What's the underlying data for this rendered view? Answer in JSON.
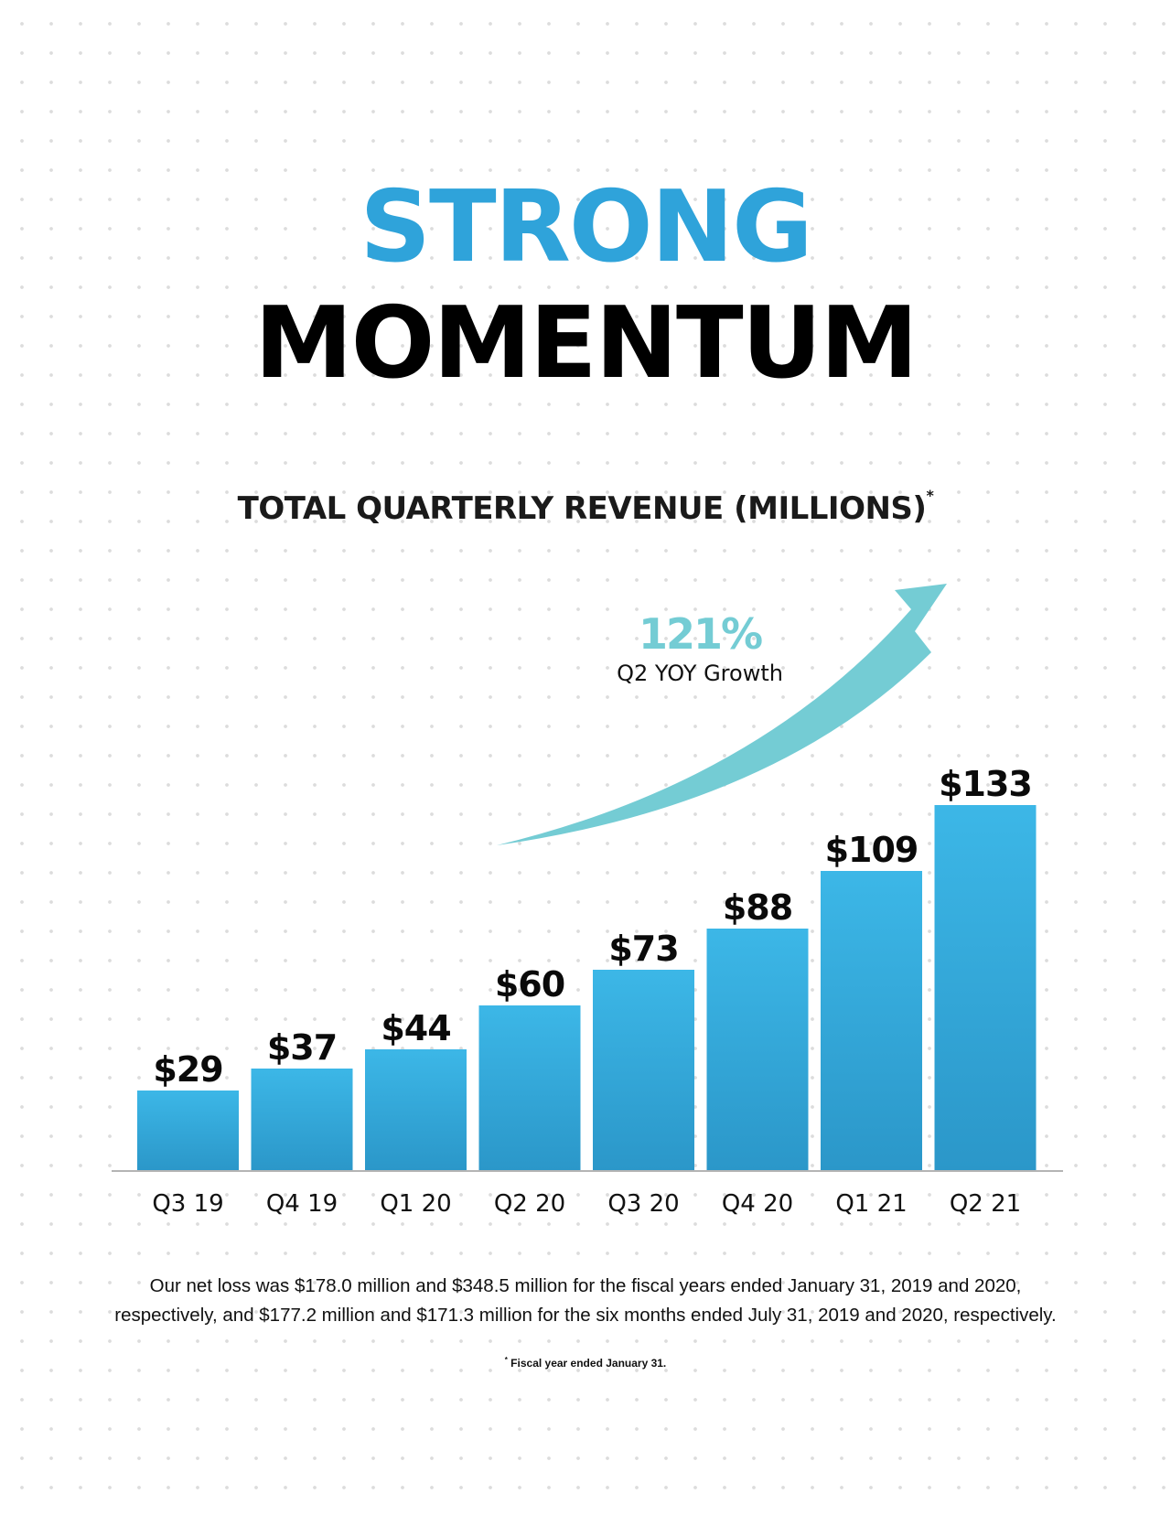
{
  "headline": {
    "line1": "STRONG",
    "line2": "MOMENTUM"
  },
  "colors": {
    "accent_blue": "#2fa3da",
    "arrow_teal": "#74ccd4",
    "bar_top": "#3cb7e7",
    "bar_bottom": "#2b97c9",
    "baseline": "#b4b4b4"
  },
  "annotation": {
    "value": "121%",
    "label": "Q2 YOY Growth"
  },
  "chart_data": {
    "type": "bar",
    "title": "TOTAL QUARTERLY REVENUE (MILLIONS)",
    "title_marker": "*",
    "categories": [
      "Q3 19",
      "Q4 19",
      "Q1 20",
      "Q2 20",
      "Q3 20",
      "Q4 20",
      "Q1 21",
      "Q2 21"
    ],
    "values": [
      29,
      37,
      44,
      60,
      73,
      88,
      109,
      133
    ],
    "data_labels": [
      "$29",
      "$37",
      "$44",
      "$60",
      "$73",
      "$88",
      "$109",
      "$133"
    ],
    "xlabel": "",
    "ylabel": "",
    "grid": false,
    "legend": "none"
  },
  "footnotes": {
    "net_loss_line1": "Our net loss was $178.0 million and $348.5 million for the fiscal years ended January 31, 2019 and 2020,",
    "net_loss_line2": "respectively, and $177.2 million and $171.3 million for the six months ended July 31, 2019 and 2020, respectively.",
    "fiscal_marker": "*",
    "fiscal_note": " Fiscal year ended January 31."
  }
}
